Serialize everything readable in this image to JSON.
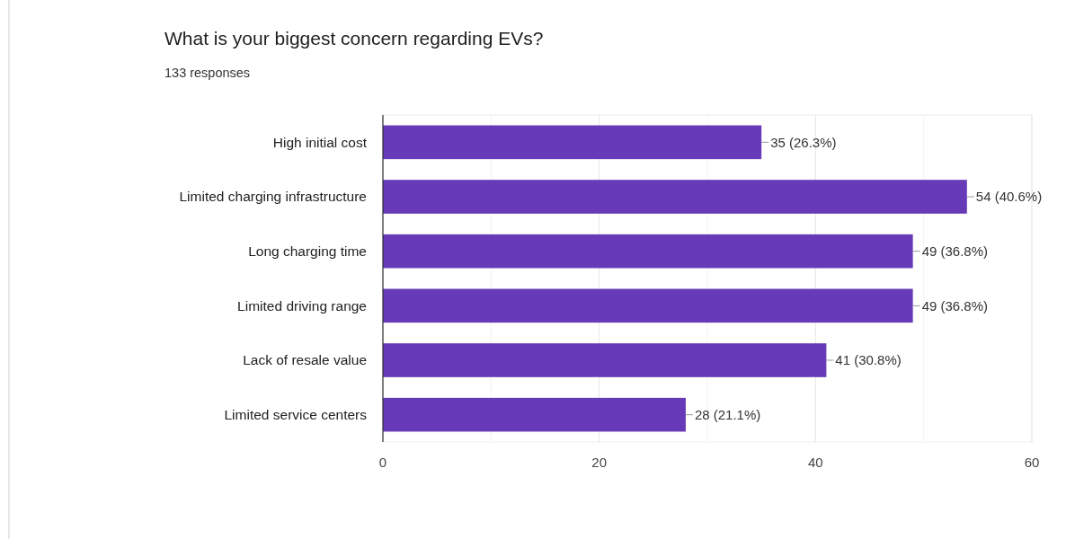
{
  "chart_data": {
    "type": "bar",
    "orientation": "horizontal",
    "title": "What is your biggest concern regarding EVs?",
    "subtitle": "133 responses",
    "categories": [
      "High initial cost",
      "Limited charging infrastructure",
      "Long charging time",
      "Limited driving range",
      "Lack of resale value",
      "Limited service centers"
    ],
    "values": [
      35,
      54,
      49,
      49,
      41,
      28
    ],
    "value_labels": [
      "35 (26.3%)",
      "54 (40.6%)",
      "49 (36.8%)",
      "49 (36.8%)",
      "41 (30.8%)",
      "28 (21.1%)"
    ],
    "color": "#673ab7",
    "xlim": [
      0,
      60
    ],
    "xticks": [
      0,
      {
        "value": 10,
        "label": null
      },
      20,
      {
        "value": 30,
        "label": null
      },
      40,
      {
        "value": 50,
        "label": null
      },
      60
    ],
    "grid": "x"
  }
}
